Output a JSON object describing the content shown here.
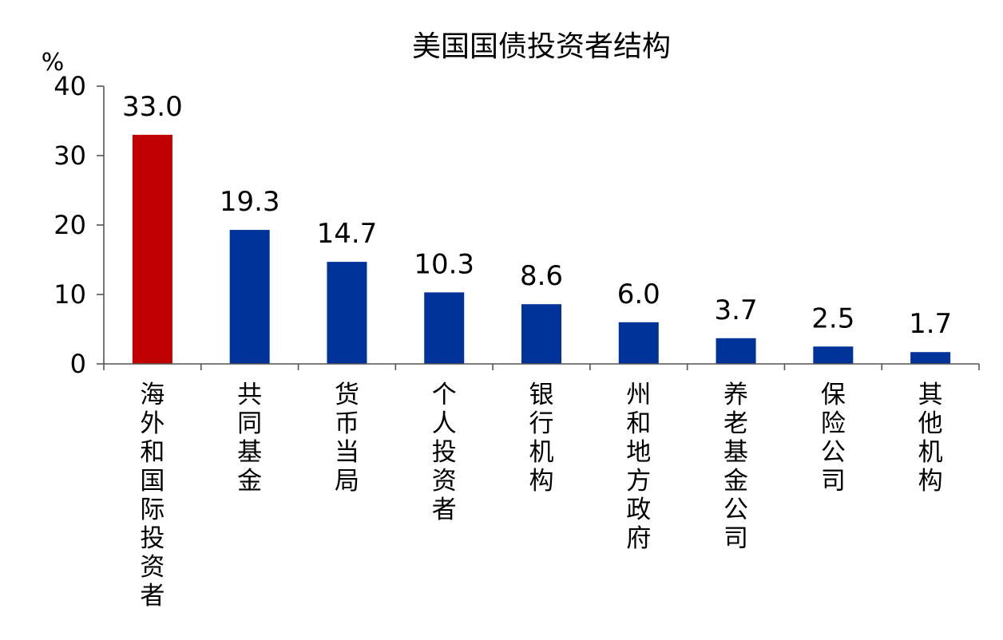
{
  "chart_data": {
    "type": "bar",
    "title": "美国国债投资者结构",
    "ylabel": "%",
    "xlabel": "",
    "ylim": [
      0,
      40
    ],
    "yticks": [
      0,
      10,
      20,
      30,
      40
    ],
    "categories": [
      "海外和国际投资者",
      "共同基金",
      "货币当局",
      "个人投资者",
      "银行机构",
      "州和地方政府",
      "养老基金公司",
      "保险公司",
      "其他机构"
    ],
    "values": [
      33.0,
      19.3,
      14.7,
      10.3,
      8.6,
      6.0,
      3.7,
      2.5,
      1.7
    ],
    "value_labels": [
      "33.0",
      "19.3",
      "14.7",
      "10.3",
      "8.6",
      "6.0",
      "3.7",
      "2.5",
      "1.7"
    ],
    "bar_colors": [
      "#C00000",
      "#003399",
      "#003399",
      "#003399",
      "#003399",
      "#003399",
      "#003399",
      "#003399",
      "#003399"
    ],
    "grid": false,
    "legend": "none"
  }
}
